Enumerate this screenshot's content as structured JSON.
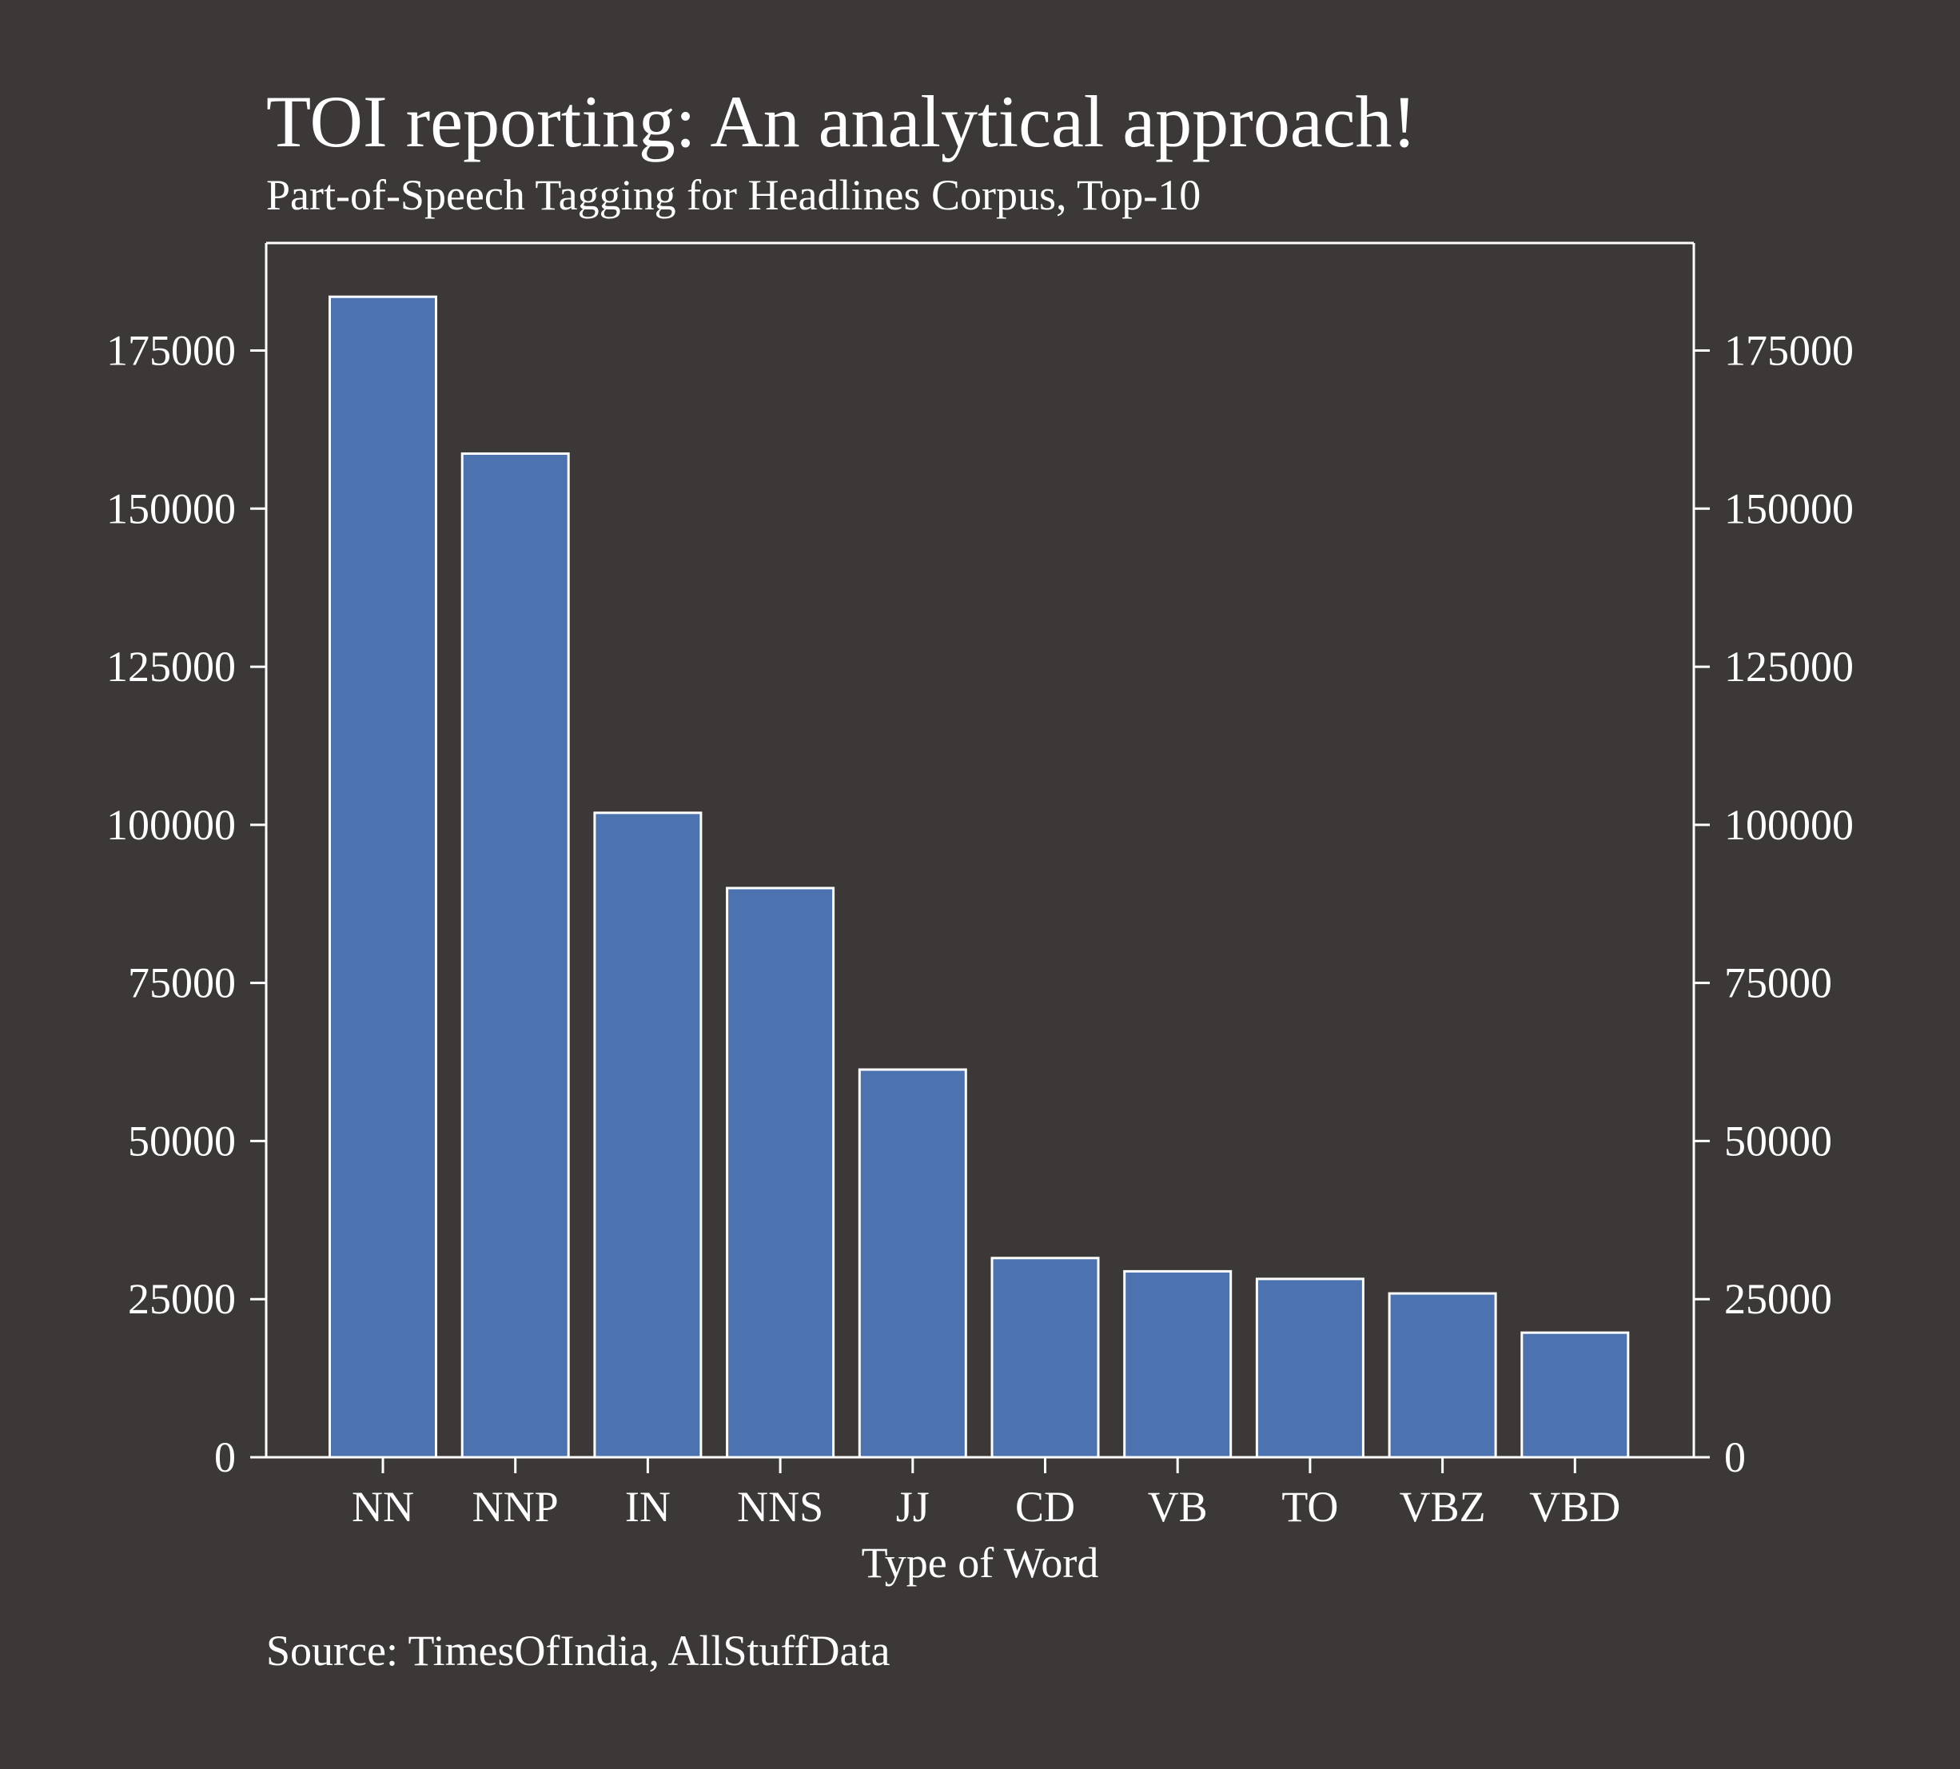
{
  "chart_data": {
    "type": "bar",
    "title": "TOI reporting: An analytical approach!",
    "subtitle": "Part-of-Speech Tagging for Headlines Corpus, Top-10",
    "xlabel": "Type of Word",
    "ylabel": "",
    "source": "Source: TimesOfIndia, AllStuffData",
    "categories": [
      "NN",
      "NNP",
      "IN",
      "NNS",
      "JJ",
      "CD",
      "VB",
      "TO",
      "VBZ",
      "VBD"
    ],
    "values": [
      183500,
      158700,
      101900,
      90000,
      61300,
      31500,
      29400,
      28200,
      25900,
      19700
    ],
    "ylim": [
      0,
      192000
    ],
    "yticks": [
      0,
      25000,
      50000,
      75000,
      100000,
      125000,
      150000,
      175000
    ],
    "ytick_labels": [
      "0",
      "25000",
      "50000",
      "75000",
      "100000",
      "125000",
      "150000",
      "175000"
    ],
    "y_axis_both_sides": true,
    "grid": false,
    "legend": "none",
    "colors": {
      "background": "#3c3837",
      "bar_fill": "#4c72b0",
      "bar_edge": "#ffffff",
      "axis": "#ffffff",
      "text": "#ffffff"
    }
  }
}
